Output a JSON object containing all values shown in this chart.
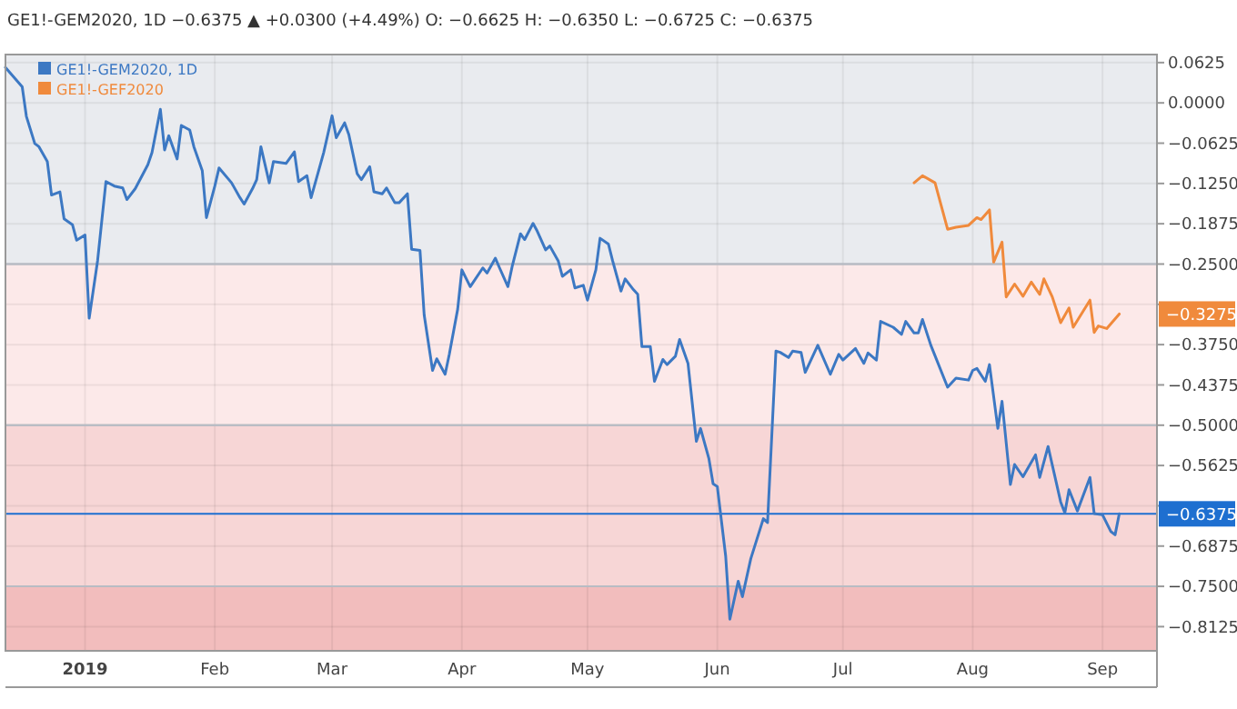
{
  "chart_data": {
    "type": "line",
    "title": "GE1!-GEM2020, 1D  −0.6375 ▲ +0.0300 (+4.49%) O: −0.6625 H: −0.6350 L: −0.6725 C: −0.6375",
    "xlim": [
      "2018-12-13",
      "2019-09-14"
    ],
    "xticks": [
      {
        "value": "2019-01-01",
        "label": "2019"
      },
      {
        "value": "2019-02-01",
        "label": "Feb"
      },
      {
        "value": "2019-03-01",
        "label": "Mar"
      },
      {
        "value": "2019-04-01",
        "label": "Apr"
      },
      {
        "value": "2019-05-01",
        "label": "May"
      },
      {
        "value": "2019-06-01",
        "label": "Jun"
      },
      {
        "value": "2019-07-01",
        "label": "Jul"
      },
      {
        "value": "2019-08-01",
        "label": "Aug"
      },
      {
        "value": "2019-09-01",
        "label": "Sep"
      }
    ],
    "ylim": [
      -0.85,
      0.075
    ],
    "yticks": [
      0.0625,
      {
        "value": 0,
        "label": "0.0000"
      },
      {
        "value": -0.0625,
        "label": "−0.0625"
      },
      {
        "value": -0.125,
        "label": "−0.1250"
      },
      {
        "value": -0.1875,
        "label": "−0.1875"
      },
      {
        "value": -0.25,
        "label": "−0.2500"
      },
      {
        "value": -0.3125,
        "label": null
      },
      {
        "value": -0.375,
        "label": "−0.3750"
      },
      {
        "value": -0.4375,
        "label": "−0.4375"
      },
      {
        "value": -0.5,
        "label": "−0.5000"
      },
      {
        "value": -0.5625,
        "label": "−0.5625"
      },
      {
        "value": -0.625,
        "label": null
      },
      {
        "value": -0.6875,
        "label": "−0.6875"
      },
      {
        "value": -0.75,
        "label": "−0.7500"
      },
      {
        "value": -0.8125,
        "label": "−0.8125"
      }
    ],
    "grid": true,
    "legend": "top left",
    "bands": [
      {
        "axis": "y",
        "from": -0.25,
        "to": 0.075,
        "color": "#e9ebef"
      },
      {
        "axis": "y",
        "from": -0.5,
        "to": -0.25,
        "color": "#fce9e9"
      },
      {
        "axis": "y",
        "from": -0.75,
        "to": -0.5,
        "color": "#f7d6d6"
      },
      {
        "axis": "y",
        "from": -0.85,
        "to": -0.75,
        "color": "#f2bdbd"
      }
    ],
    "ref_lines": [
      {
        "axis": "y",
        "value": -0.6375,
        "label": "−0.6375",
        "color": "#1e6fd0"
      }
    ],
    "annotations": [
      {
        "text": "−0.3275",
        "x": "2019-09-05",
        "y": -0.3275
      }
    ],
    "series": [
      {
        "name": "GE1!-GEM2020, 1D",
        "color": "#3c78c3",
        "x": [
          "2018-12-13",
          "2018-12-17",
          "2018-12-18",
          "2018-12-20",
          "2018-12-21",
          "2018-12-23",
          "2018-12-24",
          "2018-12-26",
          "2018-12-27",
          "2018-12-29",
          "2018-12-30",
          "2019-01-01",
          "2019-01-02",
          "2019-01-04",
          "2019-01-06",
          "2019-01-08",
          "2019-01-10",
          "2019-01-11",
          "2019-01-13",
          "2019-01-16",
          "2019-01-17",
          "2019-01-19",
          "2019-01-20",
          "2019-01-21",
          "2019-01-23",
          "2019-01-24",
          "2019-01-26",
          "2019-01-27",
          "2019-01-29",
          "2019-01-30",
          "2019-02-01",
          "2019-02-02",
          "2019-02-05",
          "2019-02-07",
          "2019-02-08",
          "2019-02-10",
          "2019-02-11",
          "2019-02-12",
          "2019-02-14",
          "2019-02-15",
          "2019-02-18",
          "2019-02-20",
          "2019-02-21",
          "2019-02-23",
          "2019-02-24",
          "2019-02-27",
          "2019-03-01",
          "2019-03-02",
          "2019-03-04",
          "2019-03-05",
          "2019-03-07",
          "2019-03-08",
          "2019-03-10",
          "2019-03-11",
          "2019-03-13",
          "2019-03-14",
          "2019-03-16",
          "2019-03-17",
          "2019-03-19",
          "2019-03-20",
          "2019-03-22",
          "2019-03-23",
          "2019-03-25",
          "2019-03-26",
          "2019-03-28",
          "2019-03-29",
          "2019-03-31",
          "2019-04-01",
          "2019-04-03",
          "2019-04-06",
          "2019-04-07",
          "2019-04-09",
          "2019-04-10",
          "2019-04-12",
          "2019-04-13",
          "2019-04-15",
          "2019-04-16",
          "2019-04-18",
          "2019-04-19",
          "2019-04-21",
          "2019-04-22",
          "2019-04-24",
          "2019-04-25",
          "2019-04-27",
          "2019-04-28",
          "2019-04-30",
          "2019-05-01",
          "2019-05-03",
          "2019-05-04",
          "2019-05-06",
          "2019-05-07",
          "2019-05-09",
          "2019-05-10",
          "2019-05-12",
          "2019-05-13",
          "2019-05-14",
          "2019-05-16",
          "2019-05-17",
          "2019-05-19",
          "2019-05-20",
          "2019-05-22",
          "2019-05-23",
          "2019-05-25",
          "2019-05-27",
          "2019-05-28",
          "2019-05-30",
          "2019-05-31",
          "2019-06-01",
          "2019-06-03",
          "2019-06-04",
          "2019-06-06",
          "2019-06-07",
          "2019-06-09",
          "2019-06-12",
          "2019-06-13",
          "2019-06-15",
          "2019-06-16",
          "2019-06-18",
          "2019-06-19",
          "2019-06-21",
          "2019-06-22",
          "2019-06-25",
          "2019-06-28",
          "2019-06-30",
          "2019-07-01",
          "2019-07-04",
          "2019-07-06",
          "2019-07-07",
          "2019-07-09",
          "2019-07-10",
          "2019-07-13",
          "2019-07-15",
          "2019-07-16",
          "2019-07-18",
          "2019-07-19",
          "2019-07-20",
          "2019-07-22",
          "2019-07-26",
          "2019-07-28",
          "2019-07-31",
          "2019-08-01",
          "2019-08-02",
          "2019-08-04",
          "2019-08-05",
          "2019-08-07",
          "2019-08-08",
          "2019-08-10",
          "2019-08-11",
          "2019-08-13",
          "2019-08-16",
          "2019-08-17",
          "2019-08-19",
          "2019-08-22",
          "2019-08-23",
          "2019-08-24",
          "2019-08-26",
          "2019-08-29",
          "2019-08-30",
          "2019-09-01",
          "2019-09-03",
          "2019-09-04",
          "2019-09-05"
        ],
        "values": [
          0.055,
          0.025,
          -0.021,
          -0.063,
          -0.068,
          -0.091,
          -0.143,
          -0.138,
          -0.18,
          -0.189,
          -0.213,
          -0.205,
          -0.334,
          -0.245,
          -0.122,
          -0.129,
          -0.132,
          -0.15,
          -0.133,
          -0.096,
          -0.077,
          -0.01,
          -0.073,
          -0.051,
          -0.087,
          -0.035,
          -0.042,
          -0.068,
          -0.105,
          -0.178,
          -0.129,
          -0.101,
          -0.124,
          -0.147,
          -0.157,
          -0.133,
          -0.119,
          -0.068,
          -0.124,
          -0.091,
          -0.094,
          -0.076,
          -0.122,
          -0.113,
          -0.147,
          -0.077,
          -0.02,
          -0.054,
          -0.031,
          -0.049,
          -0.11,
          -0.119,
          -0.099,
          -0.138,
          -0.141,
          -0.132,
          -0.155,
          -0.155,
          -0.141,
          -0.227,
          -0.229,
          -0.329,
          -0.415,
          -0.397,
          -0.421,
          -0.39,
          -0.32,
          -0.259,
          -0.285,
          -0.256,
          -0.264,
          -0.241,
          -0.256,
          -0.285,
          -0.254,
          -0.203,
          -0.212,
          -0.187,
          -0.199,
          -0.228,
          -0.222,
          -0.245,
          -0.269,
          -0.259,
          -0.287,
          -0.283,
          -0.306,
          -0.259,
          -0.21,
          -0.219,
          -0.245,
          -0.292,
          -0.273,
          -0.29,
          -0.297,
          -0.378,
          -0.378,
          -0.432,
          -0.398,
          -0.406,
          -0.393,
          -0.367,
          -0.404,
          -0.525,
          -0.505,
          -0.552,
          -0.591,
          -0.595,
          -0.703,
          -0.801,
          -0.742,
          -0.766,
          -0.707,
          -0.645,
          -0.651,
          -0.385,
          -0.387,
          -0.395,
          -0.385,
          -0.387,
          -0.418,
          -0.376,
          -0.421,
          -0.39,
          -0.399,
          -0.381,
          -0.404,
          -0.388,
          -0.399,
          -0.339,
          -0.348,
          -0.359,
          -0.339,
          -0.357,
          -0.357,
          -0.336,
          -0.376,
          -0.441,
          -0.427,
          -0.43,
          -0.415,
          -0.412,
          -0.432,
          -0.406,
          -0.505,
          -0.463,
          -0.592,
          -0.561,
          -0.58,
          -0.546,
          -0.581,
          -0.533,
          -0.619,
          -0.636,
          -0.6,
          -0.633,
          -0.581,
          -0.637,
          -0.639,
          -0.665,
          -0.67,
          -0.6375
        ]
      },
      {
        "name": "GE1!-GEF2020",
        "color": "#f08a3c",
        "x": [
          "2019-07-18",
          "2019-07-20",
          "2019-07-23",
          "2019-07-26",
          "2019-07-28",
          "2019-07-31",
          "2019-08-02",
          "2019-08-03",
          "2019-08-05",
          "2019-08-06",
          "2019-08-08",
          "2019-08-09",
          "2019-08-11",
          "2019-08-13",
          "2019-08-15",
          "2019-08-17",
          "2019-08-18",
          "2019-08-20",
          "2019-08-22",
          "2019-08-24",
          "2019-08-25",
          "2019-08-29",
          "2019-08-30",
          "2019-08-31",
          "2019-09-02",
          "2019-09-05"
        ],
        "values": [
          -0.124,
          -0.113,
          -0.124,
          -0.196,
          -0.193,
          -0.19,
          -0.178,
          -0.181,
          -0.166,
          -0.247,
          -0.216,
          -0.301,
          -0.281,
          -0.3,
          -0.278,
          -0.297,
          -0.273,
          -0.301,
          -0.341,
          -0.318,
          -0.348,
          -0.306,
          -0.356,
          -0.346,
          -0.35,
          -0.3275
        ]
      }
    ]
  }
}
